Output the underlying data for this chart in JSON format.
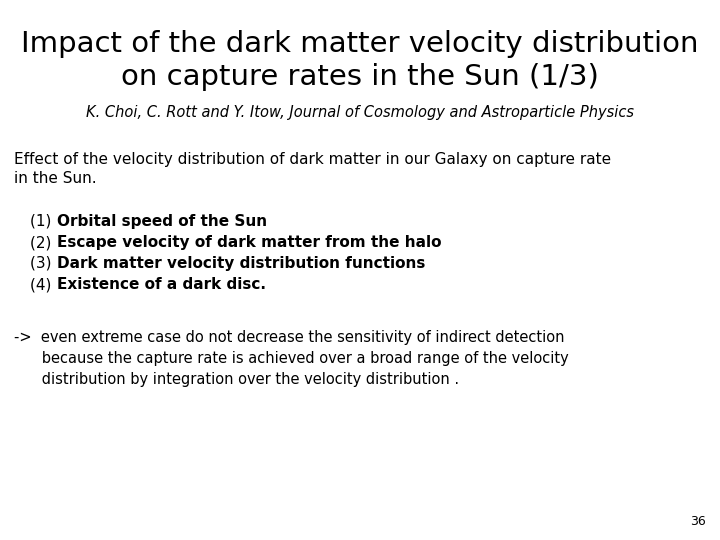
{
  "title_line1": "Impact of the dark matter velocity distribution",
  "title_line2": "on capture rates in the Sun (1/3)",
  "subtitle": "K. Choi, C. Rott and Y. Itow, Journal of Cosmology and Astroparticle Physics",
  "body_intro": "Effect of the velocity distribution of dark matter in our Galaxy on capture rate\nin the Sun.",
  "bullets": [
    {
      "normal": "(1) ",
      "bold": "Orbital speed of the Sun"
    },
    {
      "normal": "(2) ",
      "bold": "Escape velocity of dark matter from the halo"
    },
    {
      "normal": "(3) ",
      "bold": "Dark matter velocity distribution functions"
    },
    {
      "normal": "(4) ",
      "bold": "Existence of a dark disc."
    }
  ],
  "arrow_line1": "->  even extreme case do not decrease the sensitivity of indirect detection",
  "arrow_line2": "      because the capture rate is achieved over a broad range of the velocity",
  "arrow_line3": "      distribution by integration over the velocity distribution .",
  "page_number": "36",
  "bg_color": "#ffffff",
  "text_color": "#000000",
  "title_fontsize": 21,
  "subtitle_fontsize": 10.5,
  "body_fontsize": 11,
  "bullet_fontsize": 11,
  "arrow_fontsize": 10.5,
  "page_fontsize": 9
}
